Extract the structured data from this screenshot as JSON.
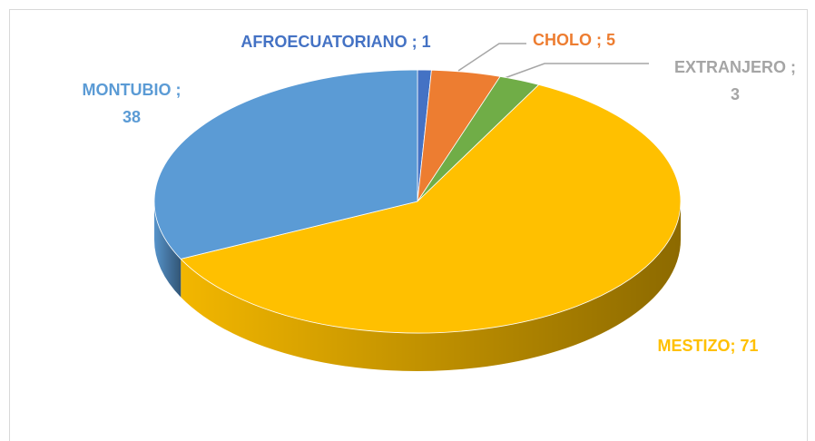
{
  "chart_data": {
    "type": "pie3d",
    "values": [
      1,
      5,
      3,
      71,
      38
    ],
    "value_labels": [
      "AFROECUATORIANO ; 1",
      "CHOLO ; 5",
      "EXTRANJERO ; 3",
      "MESTIZO; 71",
      "MONTUBIO ; 38"
    ],
    "colors": [
      "#4472c4",
      "#ed7d31",
      "#70ad47",
      "#ffc000",
      "#5b9bd5"
    ],
    "label_colors": [
      "#4472c4",
      "#ed7d31",
      "#a5a5a5",
      "#ffc000",
      "#5b9bd5"
    ]
  }
}
